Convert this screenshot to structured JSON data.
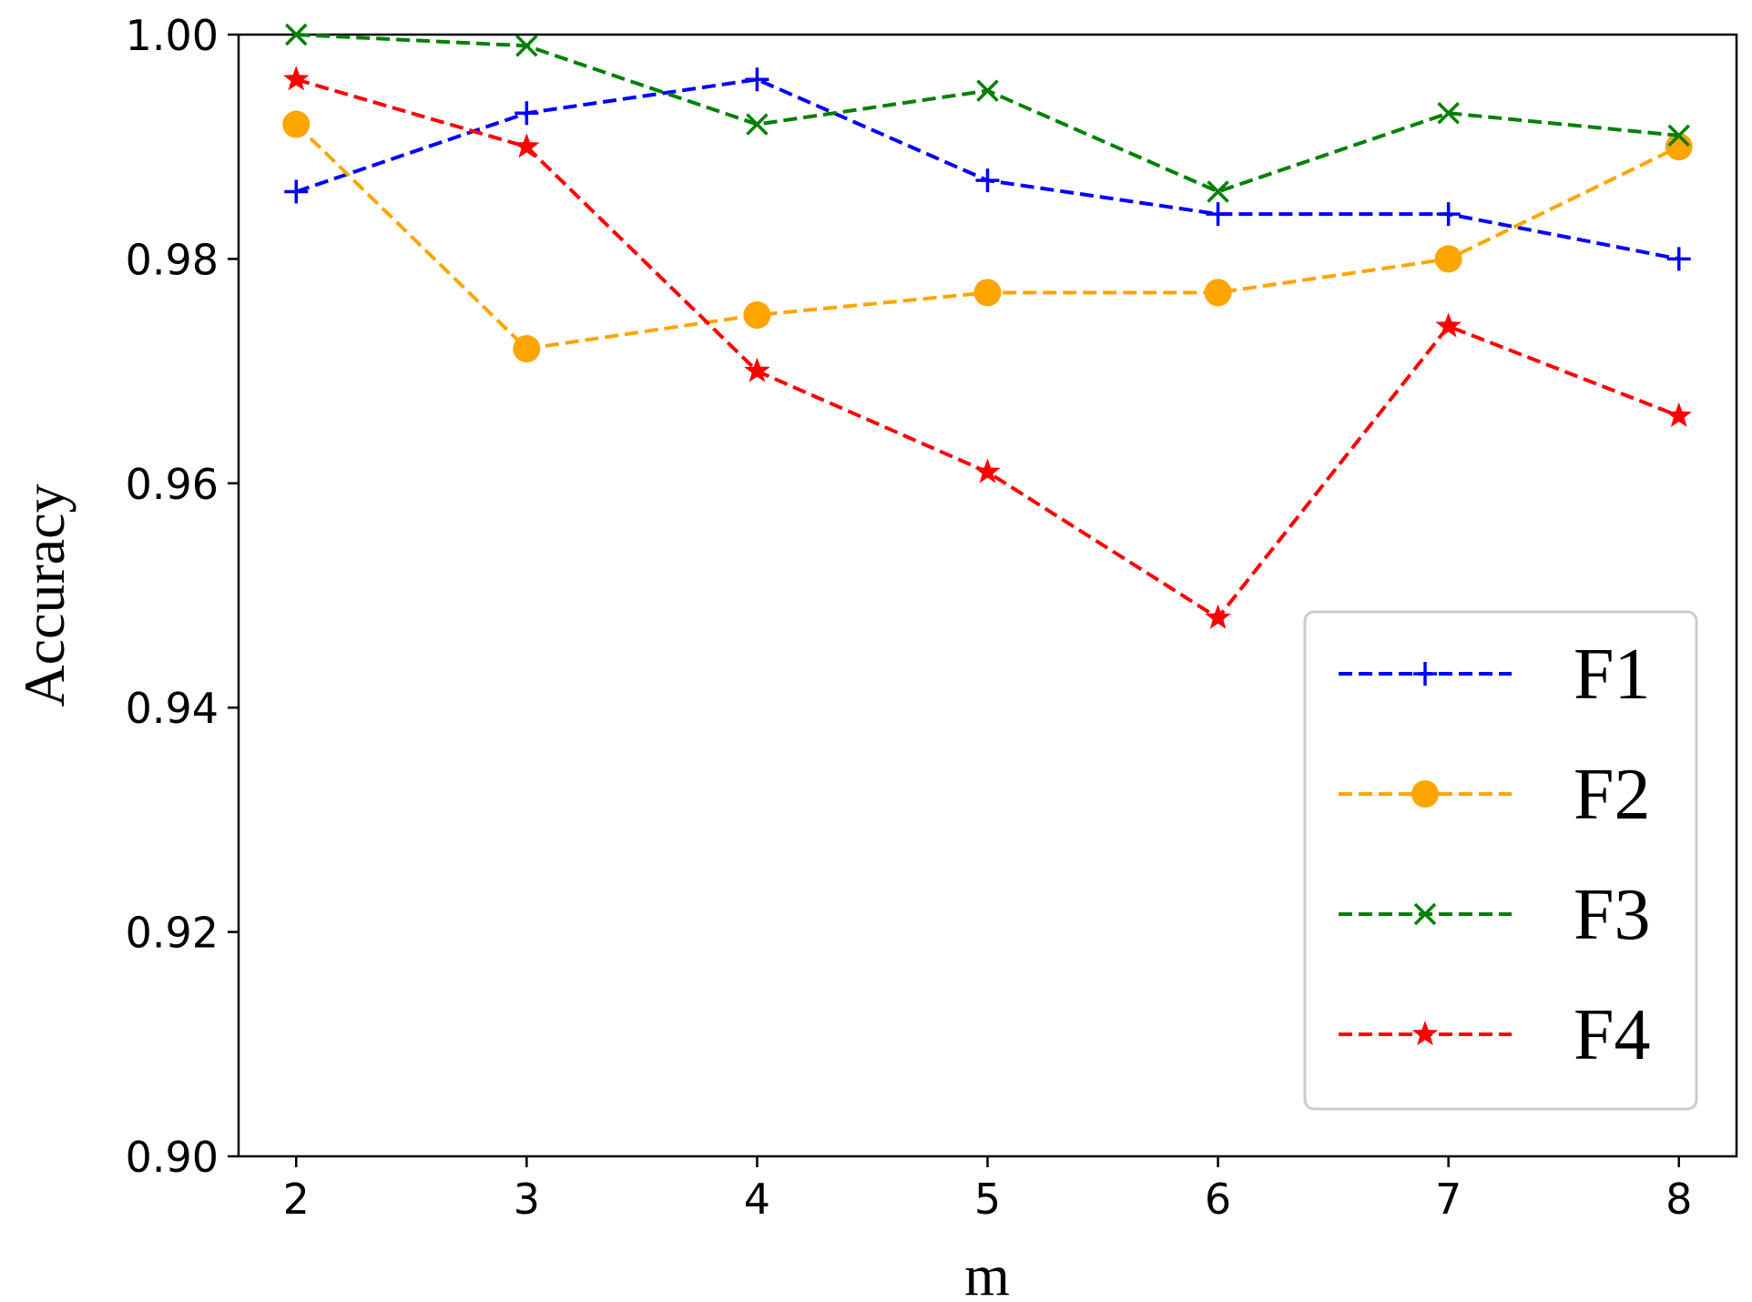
{
  "chart_data": {
    "type": "line",
    "title": "",
    "xlabel": "m",
    "ylabel": "Accuracy",
    "x": [
      2,
      3,
      4,
      5,
      6,
      7,
      8
    ],
    "xlim": [
      1.75,
      8.25
    ],
    "ylim": [
      0.9,
      1.0
    ],
    "xticks": [
      "2",
      "3",
      "4",
      "5",
      "6",
      "7",
      "8"
    ],
    "yticks": [
      "0.90",
      "0.92",
      "0.94",
      "0.96",
      "0.98",
      "1.00"
    ],
    "ytick_values": [
      0.9,
      0.92,
      0.94,
      0.96,
      0.98,
      1.0
    ],
    "grid": false,
    "legend_position": "lower-right",
    "series": [
      {
        "name": "F1",
        "color": "#0000ff",
        "marker": "plus",
        "linestyle": "dashed",
        "values": [
          0.986,
          0.993,
          0.996,
          0.987,
          0.984,
          0.984,
          0.98
        ]
      },
      {
        "name": "F2",
        "color": "#ffa500",
        "marker": "circle",
        "linestyle": "dashed",
        "values": [
          0.992,
          0.972,
          0.975,
          0.977,
          0.977,
          0.98,
          0.99
        ]
      },
      {
        "name": "F3",
        "color": "#008000",
        "marker": "x",
        "linestyle": "dashed",
        "values": [
          1.0,
          0.999,
          0.992,
          0.995,
          0.986,
          0.993,
          0.991
        ]
      },
      {
        "name": "F4",
        "color": "#ff0000",
        "marker": "star",
        "linestyle": "dashed",
        "values": [
          0.996,
          0.99,
          0.97,
          0.961,
          0.948,
          0.974,
          0.966
        ]
      }
    ]
  }
}
